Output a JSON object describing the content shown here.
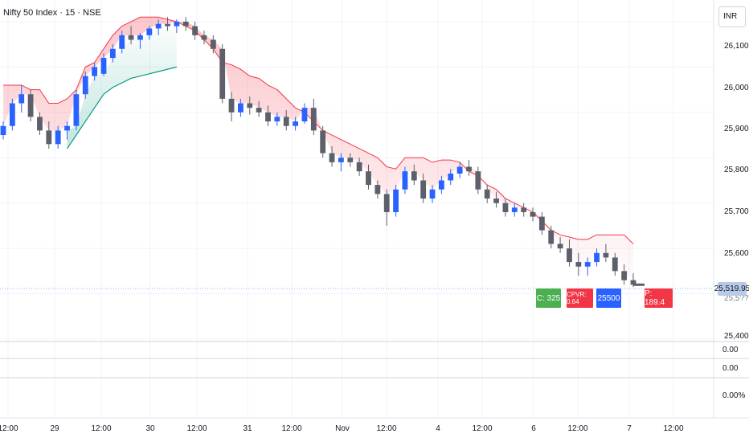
{
  "legend": {
    "title": "Nifty 50 Index · 15 · NSE"
  },
  "currency_button": "INR",
  "price_axis": {
    "labels": [
      "26,100.00",
      "26,000.00",
      "25,900.00",
      "25,800.00",
      "25,700.00",
      "25,600.00",
      "25,400.00"
    ],
    "current_price": "25,519.95",
    "current_price_partial": "25,5??.00"
  },
  "lower_panes": {
    "values": [
      "0.00",
      "0.00",
      "0.00%"
    ]
  },
  "time_axis": {
    "labels": [
      "12:00",
      "29",
      "12:00",
      "30",
      "12:00",
      "31",
      "12:00",
      "Nov",
      "12:00",
      "4",
      "12:00",
      "6",
      "12:00",
      "7",
      "12:00"
    ]
  },
  "overlay_labels": {
    "call": "C: 325",
    "cpr": "CPVR: 0.64",
    "strike": "25500",
    "put": "P: 189.4"
  },
  "colors": {
    "up_candle": "#2962ff",
    "down_candle": "#5d606b",
    "resistance_line": "#f23645",
    "support_line": "#089981",
    "call_box": "#4caf50",
    "put_box": "#f23645",
    "strike_box": "#2962ff"
  },
  "chart_data": {
    "type": "candlestick",
    "symbol": "Nifty 50 Index",
    "interval": "15",
    "exchange": "NSE",
    "currency": "INR",
    "ylim": [
      25400,
      26130
    ],
    "grid": true,
    "last_price": 25519.95,
    "ohlc": [
      [
        25850,
        25880,
        25840,
        25870
      ],
      [
        25870,
        25930,
        25860,
        25920
      ],
      [
        25920,
        25960,
        25900,
        25940
      ],
      [
        25940,
        25950,
        25880,
        25890
      ],
      [
        25890,
        25900,
        25850,
        25860
      ],
      [
        25860,
        25880,
        25820,
        25830
      ],
      [
        25830,
        25870,
        25820,
        25860
      ],
      [
        25860,
        25880,
        25840,
        25870
      ],
      [
        25870,
        25950,
        25860,
        25940
      ],
      [
        25940,
        25990,
        25930,
        25980
      ],
      [
        25980,
        26010,
        25970,
        26000
      ],
      [
        25985,
        26030,
        25980,
        26020
      ],
      [
        26020,
        26050,
        26010,
        26040
      ],
      [
        26040,
        26080,
        26030,
        26070
      ],
      [
        26070,
        26090,
        26050,
        26060
      ],
      [
        26060,
        26075,
        26040,
        26070
      ],
      [
        26070,
        26090,
        26060,
        26085
      ],
      [
        26085,
        26105,
        26070,
        26095
      ],
      [
        26095,
        26110,
        26080,
        26090
      ],
      [
        26090,
        26105,
        26075,
        26100
      ],
      [
        26100,
        26110,
        26080,
        26090
      ],
      [
        26090,
        26100,
        26060,
        26070
      ],
      [
        26070,
        26080,
        26050,
        26060
      ],
      [
        26060,
        26070,
        26030,
        26040
      ],
      [
        26040,
        26050,
        25920,
        25930
      ],
      [
        25930,
        25945,
        25880,
        25900
      ],
      [
        25900,
        25930,
        25890,
        25920
      ],
      [
        25920,
        25935,
        25895,
        25910
      ],
      [
        25910,
        25925,
        25890,
        25900
      ],
      [
        25900,
        25915,
        25870,
        25880
      ],
      [
        25880,
        25900,
        25870,
        25890
      ],
      [
        25890,
        25905,
        25860,
        25870
      ],
      [
        25870,
        25890,
        25860,
        25880
      ],
      [
        25880,
        25920,
        25875,
        25910
      ],
      [
        25910,
        25930,
        25850,
        25860
      ],
      [
        25860,
        25870,
        25800,
        25810
      ],
      [
        25810,
        25825,
        25780,
        25790
      ],
      [
        25790,
        25810,
        25770,
        25800
      ],
      [
        25800,
        25810,
        25780,
        25790
      ],
      [
        25790,
        25800,
        25760,
        25770
      ],
      [
        25770,
        25785,
        25730,
        25740
      ],
      [
        25740,
        25750,
        25710,
        25720
      ],
      [
        25720,
        25730,
        25650,
        25680
      ],
      [
        25680,
        25740,
        25670,
        25730
      ],
      [
        25730,
        25780,
        25720,
        25770
      ],
      [
        25770,
        25785,
        25740,
        25750
      ],
      [
        25750,
        25765,
        25700,
        25710
      ],
      [
        25710,
        25740,
        25700,
        25730
      ],
      [
        25730,
        25760,
        25720,
        25750
      ],
      [
        25750,
        25775,
        25740,
        25765
      ],
      [
        25765,
        25790,
        25755,
        25780
      ],
      [
        25780,
        25795,
        25760,
        25770
      ],
      [
        25770,
        25780,
        25720,
        25730
      ],
      [
        25730,
        25740,
        25700,
        25710
      ],
      [
        25710,
        25725,
        25690,
        25700
      ],
      [
        25700,
        25710,
        25670,
        25680
      ],
      [
        25680,
        25700,
        25670,
        25690
      ],
      [
        25690,
        25700,
        25670,
        25680
      ],
      [
        25680,
        25690,
        25660,
        25670
      ],
      [
        25670,
        25680,
        25630,
        25640
      ],
      [
        25640,
        25650,
        25600,
        25610
      ],
      [
        25610,
        25625,
        25590,
        25600
      ],
      [
        25600,
        25620,
        25560,
        25570
      ],
      [
        25570,
        25590,
        25540,
        25560
      ],
      [
        25560,
        25580,
        25540,
        25570
      ],
      [
        25570,
        25600,
        25560,
        25590
      ],
      [
        25590,
        25610,
        25570,
        25580
      ],
      [
        25580,
        25590,
        25540,
        25550
      ],
      [
        25550,
        25565,
        25520,
        25530
      ],
      [
        25530,
        25545,
        25515,
        25520
      ]
    ],
    "resistance_line": [
      25960,
      25960,
      25960,
      25950,
      25950,
      25920,
      25920,
      25930,
      25950,
      26000,
      26010,
      26040,
      26070,
      26090,
      26100,
      26110,
      26110,
      26110,
      26105,
      26100,
      26090,
      26080,
      26060,
      26040,
      26010,
      26005,
      25995,
      25980,
      25975,
      25960,
      25950,
      25930,
      25910,
      25900,
      25880,
      25860,
      25850,
      25840,
      25830,
      25820,
      25810,
      25800,
      25780,
      25775,
      25800,
      25800,
      25800,
      25790,
      25795,
      25795,
      25790,
      25770,
      25760,
      25740,
      25730,
      25710,
      25700,
      25690,
      25680,
      25660,
      25640,
      25630,
      25625,
      25620,
      25620,
      25630,
      25630,
      25630,
      25630,
      25610
    ],
    "support_line": [
      null,
      null,
      null,
      null,
      null,
      null,
      null,
      25820,
      25850,
      25880,
      25910,
      25940,
      25955,
      25965,
      25975,
      25980,
      25985,
      25990,
      25995,
      26000,
      null,
      null,
      null,
      null,
      null,
      null,
      null,
      null,
      null,
      null,
      null,
      null,
      null,
      null,
      null,
      null,
      null,
      null,
      null,
      null,
      null,
      null,
      null,
      null,
      null,
      null,
      null,
      null,
      null,
      null,
      null,
      null,
      null,
      null,
      null,
      null,
      null,
      null,
      null,
      null,
      null,
      null,
      null,
      null,
      null,
      null,
      null,
      null,
      null,
      null
    ]
  }
}
